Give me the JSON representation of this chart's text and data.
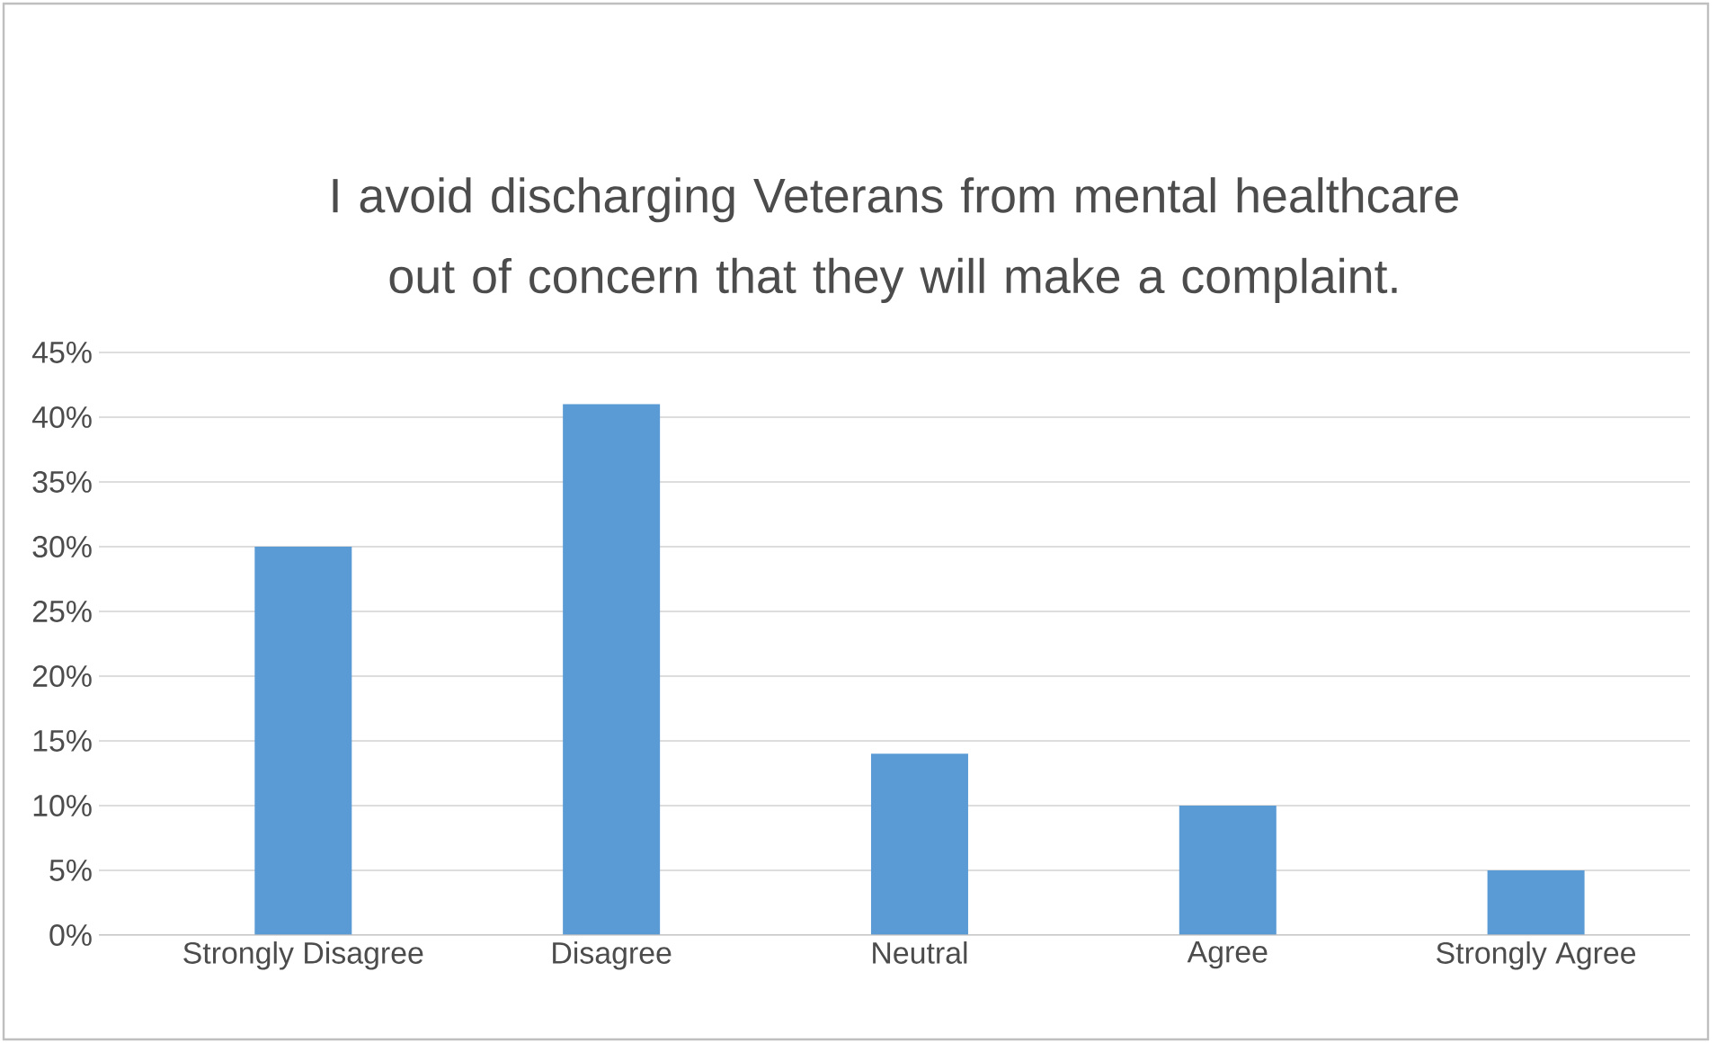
{
  "chart_data": {
    "type": "bar",
    "title": "I avoid discharging Veterans from mental healthcare out of concern that they will make a complaint.",
    "categories": [
      "Strongly Disagree",
      "Disagree",
      "Neutral",
      "Agree",
      "Strongly Agree"
    ],
    "values": [
      30,
      41,
      14,
      10,
      5
    ],
    "color": "#5b9bd5",
    "ylim": [
      0,
      45
    ],
    "yticks": [
      {
        "value": 0,
        "label": "0%"
      },
      {
        "value": 5,
        "label": "5%"
      },
      {
        "value": 10,
        "label": "10%"
      },
      {
        "value": 15,
        "label": "15%"
      },
      {
        "value": 20,
        "label": "20%"
      },
      {
        "value": 25,
        "label": "25%"
      },
      {
        "value": 30,
        "label": "30%"
      },
      {
        "value": 35,
        "label": "35%"
      },
      {
        "value": 40,
        "label": "40%"
      },
      {
        "value": 45,
        "label": "45%"
      }
    ],
    "grid": "y"
  }
}
